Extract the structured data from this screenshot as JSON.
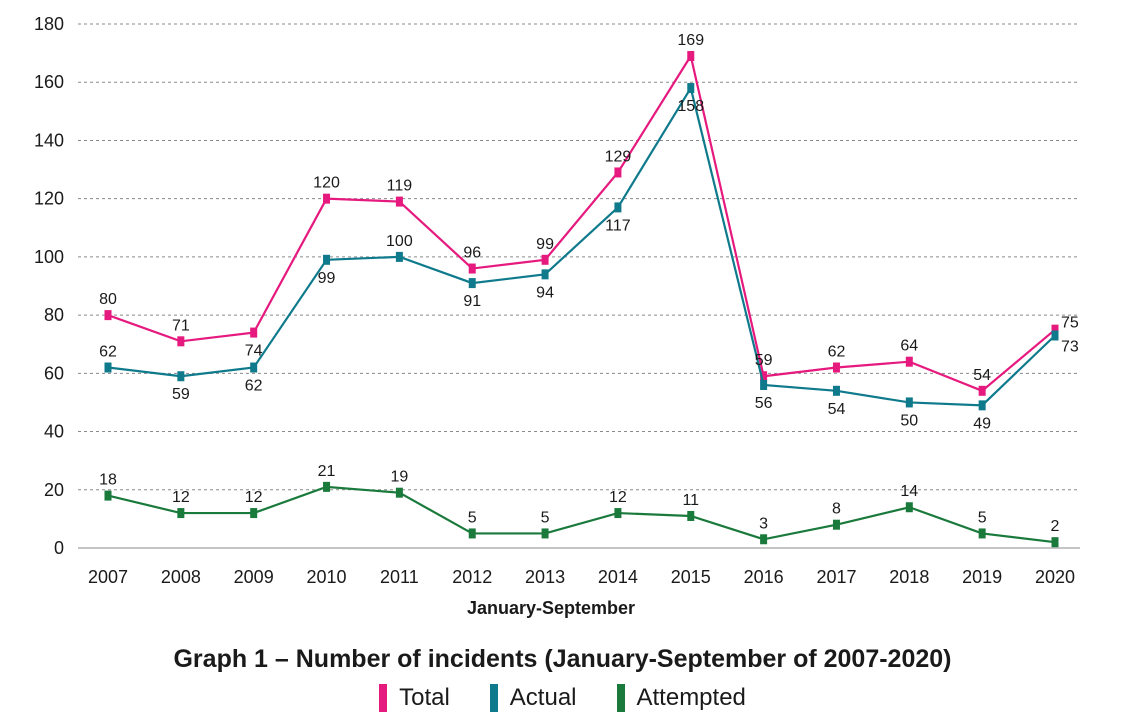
{
  "chart_data": {
    "type": "line",
    "title": "Graph 1 – Number of incidents (January-September of 2007-2020)",
    "xlabel": "January-September",
    "ylabel": "",
    "categories": [
      "2007",
      "2008",
      "2009",
      "2010",
      "2011",
      "2012",
      "2013",
      "2014",
      "2015",
      "2016",
      "2017",
      "2018",
      "2019",
      "2020"
    ],
    "ylim": [
      0,
      180
    ],
    "yticks": [
      0,
      20,
      40,
      60,
      80,
      100,
      120,
      140,
      160,
      180
    ],
    "grid": true,
    "legend_position": "bottom",
    "series": [
      {
        "name": "Total",
        "color": "#e6197e",
        "values": [
          80,
          71,
          74,
          120,
          119,
          96,
          99,
          129,
          169,
          59,
          62,
          64,
          54,
          75
        ]
      },
      {
        "name": "Actual",
        "color": "#0e7a8c",
        "values": [
          62,
          59,
          62,
          99,
          100,
          91,
          94,
          117,
          158,
          56,
          54,
          50,
          49,
          73
        ]
      },
      {
        "name": "Attempted",
        "color": "#1a7a3c",
        "values": [
          18,
          12,
          12,
          21,
          19,
          5,
          5,
          12,
          11,
          3,
          8,
          14,
          5,
          2
        ]
      }
    ]
  }
}
